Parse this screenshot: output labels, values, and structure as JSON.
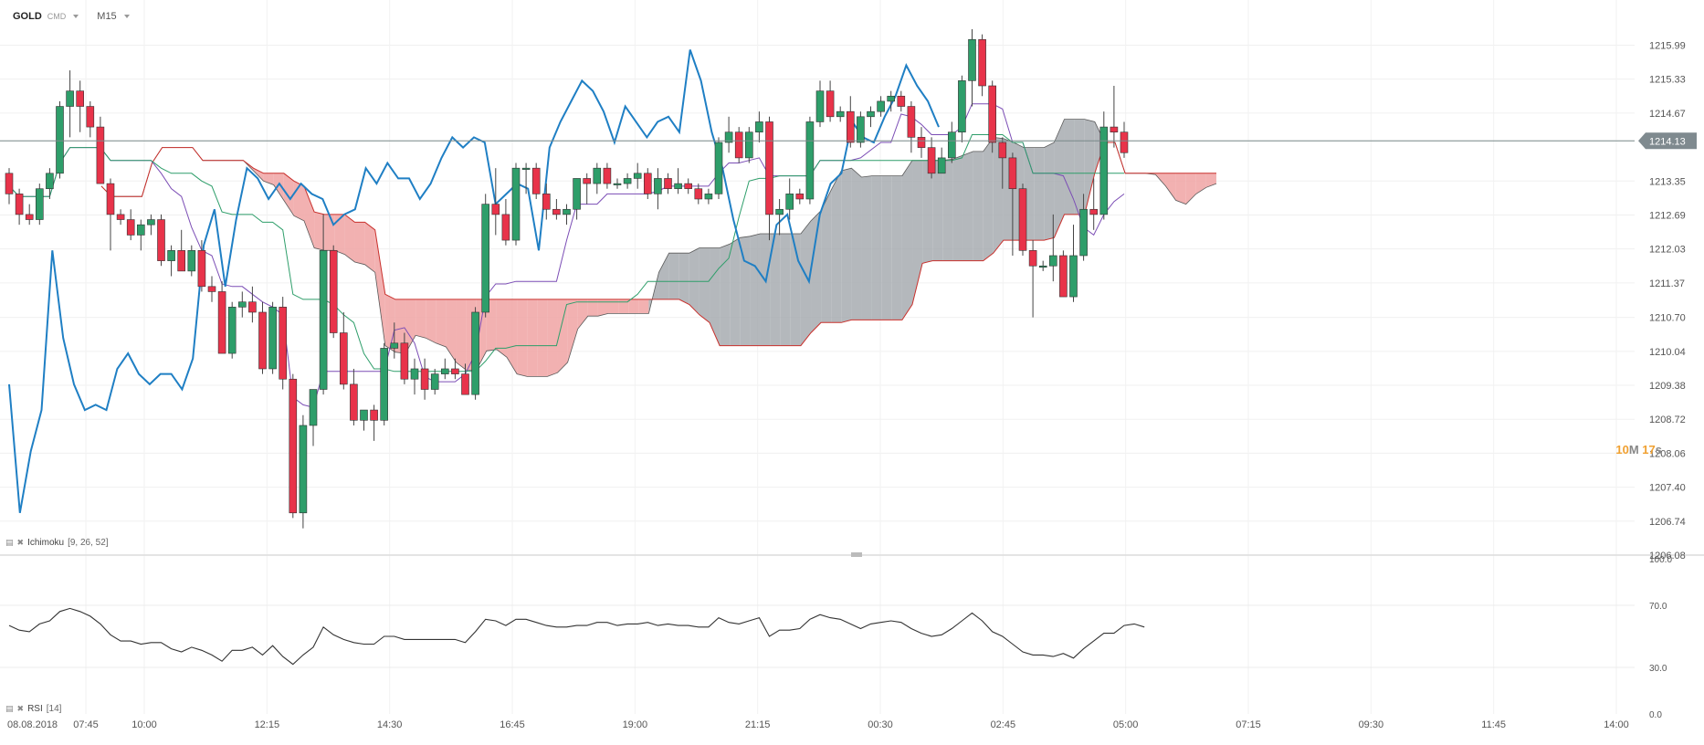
{
  "header": {
    "symbol": "GOLD",
    "instrument_type": "CMD",
    "timeframe": "M15"
  },
  "timer": {
    "minutes": "10",
    "m_label": "M",
    "seconds": "17",
    "s_label": "s"
  },
  "indicators": {
    "ichimoku": {
      "name": "Ichimoku",
      "params": "[9, 26, 52]"
    },
    "rsi": {
      "name": "RSI",
      "params": "[14]"
    }
  },
  "colors": {
    "bull": "#2e9e6a",
    "bear": "#e8334a",
    "rsi_overlay": "#1f7fc4",
    "tenkan": "#7b4db5",
    "kijun": "#2e9e6a",
    "senkou_b": "#c9302c",
    "cloud_bull": "#a7abb0",
    "cloud_bear": "#f0a3a3",
    "price_line": "#7a8a8a"
  },
  "chart_data": [
    {
      "type": "candlestick",
      "title": "GOLD",
      "y_ticks": [
        "1215.99",
        "1215.33",
        "1214.67",
        "1214.13",
        "1213.35",
        "1212.69",
        "1212.03",
        "1211.37",
        "1210.70",
        "1210.04",
        "1209.38",
        "1208.72",
        "1208.06",
        "1207.40",
        "1206.74",
        "1206.08"
      ],
      "ylim": [
        1206.08,
        1216.3
      ],
      "current_price": "1214.13",
      "x_ticks": [
        "08.08.2018",
        "07:45",
        "10:00",
        "12:15",
        "14:30",
        "16:45",
        "19:00",
        "21:15",
        "00:30",
        "02:45",
        "05:00",
        "07:15",
        "09:30",
        "11:45",
        "14:00"
      ],
      "candles_ohlc": [
        [
          1213.5,
          1213.6,
          1212.9,
          1213.1
        ],
        [
          1213.1,
          1213.2,
          1212.5,
          1212.7
        ],
        [
          1212.7,
          1212.9,
          1212.5,
          1212.6
        ],
        [
          1212.6,
          1213.3,
          1212.5,
          1213.2
        ],
        [
          1213.2,
          1213.6,
          1213.0,
          1213.5
        ],
        [
          1213.5,
          1214.9,
          1213.4,
          1214.8
        ],
        [
          1214.8,
          1215.5,
          1214.2,
          1215.1
        ],
        [
          1215.1,
          1215.3,
          1214.3,
          1214.8
        ],
        [
          1214.8,
          1214.9,
          1214.2,
          1214.4
        ],
        [
          1214.4,
          1214.6,
          1213.3,
          1213.3
        ],
        [
          1213.3,
          1213.4,
          1212.0,
          1212.7
        ],
        [
          1212.7,
          1212.8,
          1212.5,
          1212.6
        ],
        [
          1212.6,
          1212.8,
          1212.2,
          1212.3
        ],
        [
          1212.3,
          1212.6,
          1212.0,
          1212.5
        ],
        [
          1212.5,
          1212.7,
          1212.3,
          1212.6
        ],
        [
          1212.6,
          1212.7,
          1211.7,
          1211.8
        ],
        [
          1211.8,
          1212.1,
          1211.5,
          1212.0
        ],
        [
          1212.0,
          1212.4,
          1211.6,
          1211.6
        ],
        [
          1211.6,
          1212.1,
          1211.5,
          1212.0
        ],
        [
          1212.0,
          1212.2,
          1211.2,
          1211.3
        ],
        [
          1211.3,
          1211.5,
          1211.0,
          1211.2
        ],
        [
          1211.2,
          1211.4,
          1210.0,
          1210.0
        ],
        [
          1210.0,
          1211.0,
          1209.9,
          1210.9
        ],
        [
          1210.9,
          1211.2,
          1210.7,
          1211.0
        ],
        [
          1211.0,
          1211.3,
          1210.6,
          1210.8
        ],
        [
          1210.8,
          1211.0,
          1209.6,
          1209.7
        ],
        [
          1209.7,
          1211.0,
          1209.6,
          1210.9
        ],
        [
          1210.9,
          1211.1,
          1209.3,
          1209.5
        ],
        [
          1209.5,
          1209.6,
          1206.8,
          1206.9
        ],
        [
          1206.9,
          1208.8,
          1206.6,
          1208.6
        ],
        [
          1208.6,
          1209.3,
          1208.2,
          1209.3
        ],
        [
          1209.3,
          1212.7,
          1209.2,
          1212.0
        ],
        [
          1212.0,
          1212.1,
          1210.3,
          1210.4
        ],
        [
          1210.4,
          1210.8,
          1209.3,
          1209.4
        ],
        [
          1209.4,
          1209.7,
          1208.6,
          1208.7
        ],
        [
          1208.7,
          1208.9,
          1208.5,
          1208.9
        ],
        [
          1208.9,
          1209.0,
          1208.3,
          1208.7
        ],
        [
          1208.7,
          1210.2,
          1208.6,
          1210.1
        ],
        [
          1210.1,
          1210.6,
          1209.9,
          1210.2
        ],
        [
          1210.2,
          1210.4,
          1209.4,
          1209.5
        ],
        [
          1209.5,
          1209.9,
          1209.2,
          1209.7
        ],
        [
          1209.7,
          1209.9,
          1209.1,
          1209.3
        ],
        [
          1209.3,
          1209.7,
          1209.2,
          1209.6
        ],
        [
          1209.6,
          1209.9,
          1209.5,
          1209.7
        ],
        [
          1209.7,
          1209.9,
          1209.5,
          1209.6
        ],
        [
          1209.6,
          1209.8,
          1209.2,
          1209.2
        ],
        [
          1209.2,
          1210.9,
          1209.1,
          1210.8
        ],
        [
          1210.8,
          1213.1,
          1210.7,
          1212.9
        ],
        [
          1212.9,
          1213.6,
          1212.3,
          1212.7
        ],
        [
          1212.7,
          1213.0,
          1212.1,
          1212.2
        ],
        [
          1212.2,
          1213.7,
          1212.1,
          1213.6
        ],
        [
          1213.6,
          1213.7,
          1213.1,
          1213.6
        ],
        [
          1213.6,
          1213.7,
          1213.0,
          1213.1
        ],
        [
          1213.1,
          1213.3,
          1212.6,
          1212.8
        ],
        [
          1212.8,
          1213.0,
          1212.6,
          1212.7
        ],
        [
          1212.7,
          1212.9,
          1212.5,
          1212.8
        ],
        [
          1212.8,
          1213.4,
          1212.6,
          1213.4
        ],
        [
          1213.4,
          1213.5,
          1212.9,
          1213.3
        ],
        [
          1213.3,
          1213.7,
          1213.1,
          1213.6
        ],
        [
          1213.6,
          1213.7,
          1213.2,
          1213.3
        ],
        [
          1213.3,
          1213.4,
          1213.2,
          1213.3
        ],
        [
          1213.3,
          1213.5,
          1213.2,
          1213.4
        ],
        [
          1213.4,
          1213.7,
          1213.2,
          1213.5
        ],
        [
          1213.5,
          1213.6,
          1213.0,
          1213.1
        ],
        [
          1213.1,
          1213.6,
          1212.8,
          1213.4
        ],
        [
          1213.4,
          1213.5,
          1213.1,
          1213.2
        ],
        [
          1213.2,
          1213.6,
          1213.1,
          1213.3
        ],
        [
          1213.3,
          1213.4,
          1213.1,
          1213.2
        ],
        [
          1213.2,
          1213.3,
          1212.9,
          1213.0
        ],
        [
          1213.0,
          1213.2,
          1212.9,
          1213.1
        ],
        [
          1213.1,
          1214.2,
          1213.0,
          1214.1
        ],
        [
          1214.1,
          1214.6,
          1213.9,
          1214.3
        ],
        [
          1214.3,
          1214.4,
          1213.7,
          1213.8
        ],
        [
          1213.8,
          1214.4,
          1213.7,
          1214.3
        ],
        [
          1214.3,
          1214.7,
          1214.1,
          1214.5
        ],
        [
          1214.5,
          1214.6,
          1212.2,
          1212.7
        ],
        [
          1212.7,
          1213.0,
          1212.3,
          1212.8
        ],
        [
          1212.8,
          1213.4,
          1212.6,
          1213.1
        ],
        [
          1213.1,
          1213.2,
          1212.9,
          1213.0
        ],
        [
          1213.0,
          1214.6,
          1212.9,
          1214.5
        ],
        [
          1214.5,
          1215.3,
          1214.4,
          1215.1
        ],
        [
          1215.1,
          1215.3,
          1214.5,
          1214.6
        ],
        [
          1214.6,
          1214.8,
          1214.5,
          1214.7
        ],
        [
          1214.7,
          1215.0,
          1214.0,
          1214.1
        ],
        [
          1214.1,
          1214.7,
          1214.0,
          1214.6
        ],
        [
          1214.6,
          1214.8,
          1214.4,
          1214.7
        ],
        [
          1214.7,
          1215.0,
          1214.6,
          1214.9
        ],
        [
          1214.9,
          1215.1,
          1214.7,
          1215.0
        ],
        [
          1215.0,
          1215.1,
          1214.7,
          1214.8
        ],
        [
          1214.8,
          1214.9,
          1213.9,
          1214.2
        ],
        [
          1214.2,
          1214.4,
          1213.8,
          1214.0
        ],
        [
          1214.0,
          1214.2,
          1213.4,
          1213.5
        ],
        [
          1213.5,
          1214.0,
          1213.5,
          1213.8
        ],
        [
          1213.8,
          1214.5,
          1213.7,
          1214.3
        ],
        [
          1214.3,
          1215.4,
          1214.1,
          1215.3
        ],
        [
          1215.3,
          1216.3,
          1214.8,
          1216.1
        ],
        [
          1216.1,
          1216.2,
          1215.0,
          1215.2
        ],
        [
          1215.2,
          1215.3,
          1213.9,
          1214.1
        ],
        [
          1214.1,
          1214.2,
          1213.2,
          1213.8
        ],
        [
          1213.8,
          1213.9,
          1211.9,
          1213.2
        ],
        [
          1213.2,
          1213.3,
          1211.9,
          1212.0
        ],
        [
          1212.0,
          1212.2,
          1210.7,
          1211.7
        ],
        [
          1211.7,
          1211.8,
          1211.6,
          1211.7
        ],
        [
          1211.7,
          1212.7,
          1211.4,
          1211.9
        ],
        [
          1211.9,
          1212.0,
          1211.1,
          1211.1
        ],
        [
          1211.1,
          1212.5,
          1211.0,
          1211.9
        ],
        [
          1211.9,
          1213.1,
          1211.8,
          1212.8
        ],
        [
          1212.8,
          1213.4,
          1212.4,
          1212.7
        ],
        [
          1212.7,
          1214.7,
          1212.6,
          1214.4
        ],
        [
          1214.4,
          1215.2,
          1214.0,
          1214.3
        ],
        [
          1214.3,
          1214.5,
          1213.8,
          1213.9
        ]
      ],
      "series": [
        {
          "name": "",
          "values": [
            1209.4,
            1206.9,
            1208.1,
            1208.9,
            1212.0,
            1210.3,
            1209.4,
            1208.9,
            1209.0,
            1208.9,
            1209.7,
            1210.0,
            1209.6,
            1209.4,
            1209.6,
            1209.6,
            1209.3,
            1209.9,
            1212.1,
            1212.8,
            1211.3,
            1212.6,
            1213.6,
            1213.4,
            1213.0,
            1213.3,
            1213.0,
            1213.3,
            1213.1,
            1213.0,
            1212.5,
            1212.7,
            1212.8,
            1213.6,
            1213.3,
            1213.7,
            1213.4,
            1213.4,
            1213.0,
            1213.3,
            1213.8,
            1214.2,
            1214.0,
            1214.2,
            1214.1,
            1212.9,
            1213.1,
            1213.3,
            1213.2,
            1212.0,
            1214.0,
            1214.5,
            1214.9,
            1215.3,
            1215.1,
            1214.7,
            1214.1,
            1214.8,
            1214.5,
            1214.2,
            1214.5,
            1214.6,
            1214.3,
            1215.9,
            1215.3,
            1214.3,
            1213.6,
            1212.6,
            1211.8,
            1211.7,
            1211.4,
            1212.5,
            1212.7,
            1211.8,
            1211.4,
            1212.7,
            1213.3,
            1213.5,
            1214.5,
            1214.2,
            1214.1,
            1214.6,
            1215.0,
            1215.6,
            1215.2,
            1214.9,
            1214.4
          ]
        }
      ],
      "rsi": {
        "levels": [
          "100.0",
          "70.0",
          "30.0",
          "0.0"
        ],
        "values": [
          57,
          54,
          53,
          58,
          60,
          66,
          68,
          66,
          63,
          58,
          51,
          47,
          47,
          45,
          46,
          46,
          42,
          40,
          43,
          41,
          38,
          34,
          41,
          41,
          43,
          38,
          44,
          37,
          32,
          38,
          43,
          56,
          51,
          48,
          46,
          45,
          45,
          50,
          50,
          48,
          48,
          48,
          48,
          48,
          48,
          46,
          53,
          61,
          60,
          57,
          61,
          61,
          59,
          57,
          56,
          56,
          57,
          57,
          59,
          59,
          57,
          58,
          58,
          59,
          57,
          58,
          57,
          57,
          56,
          56,
          62,
          59,
          58,
          60,
          62,
          50,
          54,
          54,
          55,
          61,
          64,
          62,
          61,
          58,
          55,
          58,
          59,
          60,
          59,
          55,
          52,
          50,
          51,
          55,
          60,
          65,
          60,
          53,
          50,
          45,
          40,
          38,
          38,
          37,
          39,
          36,
          42,
          47,
          52,
          52,
          57,
          58,
          56
        ]
      }
    }
  ]
}
